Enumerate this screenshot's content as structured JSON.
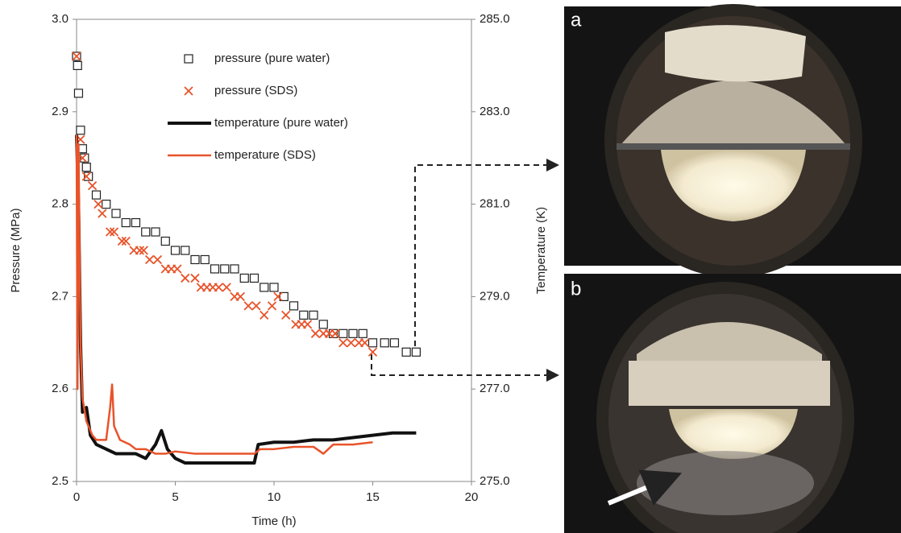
{
  "chart_data": {
    "type": "scatter-line",
    "xlabel": "Time (h)",
    "ylabel": "Pressure (MPa)",
    "y2label": "Temperature (K)",
    "xlim": [
      0,
      20
    ],
    "xticks": [
      0,
      5,
      10,
      15,
      20
    ],
    "ylim": [
      2.5,
      3.0
    ],
    "yticks": [
      2.5,
      2.6,
      2.7,
      2.8,
      2.9,
      {
        "value": 3,
        "label": "3.0"
      }
    ],
    "y2lim": [
      275,
      285
    ],
    "y2ticks": [
      {
        "value": 275,
        "label": "275.0"
      },
      {
        "value": 277,
        "label": "277.0"
      },
      {
        "value": 279,
        "label": "279.0"
      },
      {
        "value": 281,
        "label": "281.0"
      },
      {
        "value": 283,
        "label": "283.0"
      },
      {
        "value": 285,
        "label": "285.0"
      }
    ],
    "series": [
      {
        "name": "pressure (pure water)",
        "kind": "marker",
        "marker": "square",
        "color": "#222222",
        "x": [
          0,
          0.05,
          0.1,
          0.2,
          0.3,
          0.4,
          0.5,
          0.6,
          1.0,
          1.5,
          2.0,
          2.5,
          3.0,
          3.5,
          4.0,
          4.5,
          5.0,
          5.5,
          6.0,
          6.5,
          7.0,
          7.5,
          8.0,
          8.5,
          9.0,
          9.5,
          10.0,
          10.5,
          11.0,
          11.5,
          12.0,
          12.5,
          13.0,
          13.5,
          14.0,
          14.5,
          15.0,
          15.6,
          16.1,
          16.7,
          17.2
        ],
        "values": [
          2.96,
          2.95,
          2.92,
          2.88,
          2.86,
          2.85,
          2.84,
          2.83,
          2.81,
          2.8,
          2.79,
          2.78,
          2.78,
          2.77,
          2.77,
          2.76,
          2.75,
          2.75,
          2.74,
          2.74,
          2.73,
          2.73,
          2.73,
          2.72,
          2.72,
          2.71,
          2.71,
          2.7,
          2.69,
          2.68,
          2.68,
          2.67,
          2.66,
          2.66,
          2.66,
          2.66,
          2.65,
          2.65,
          2.65,
          2.64,
          2.64
        ]
      },
      {
        "name": "pressure (SDS)",
        "kind": "marker",
        "marker": "x",
        "color": "#e8532a",
        "x": [
          0,
          0.2,
          0.3,
          0.5,
          0.8,
          1.1,
          1.3,
          1.7,
          1.9,
          2.3,
          2.5,
          2.9,
          3.2,
          3.4,
          3.7,
          4.1,
          4.5,
          4.8,
          5.1,
          5.5,
          6.0,
          6.3,
          6.6,
          6.9,
          7.2,
          7.6,
          8.0,
          8.3,
          8.7,
          9.1,
          9.5,
          9.9,
          10.2,
          10.6,
          11.1,
          11.4,
          11.7,
          12.1,
          12.5,
          12.8,
          13.1,
          13.5,
          13.9,
          14.3,
          14.6,
          15.0
        ],
        "values": [
          2.96,
          2.87,
          2.85,
          2.83,
          2.82,
          2.8,
          2.79,
          2.77,
          2.77,
          2.76,
          2.76,
          2.75,
          2.75,
          2.75,
          2.74,
          2.74,
          2.73,
          2.73,
          2.73,
          2.72,
          2.72,
          2.71,
          2.71,
          2.71,
          2.71,
          2.71,
          2.7,
          2.7,
          2.69,
          2.69,
          2.68,
          2.69,
          2.7,
          2.68,
          2.67,
          2.67,
          2.67,
          2.66,
          2.66,
          2.66,
          2.66,
          2.65,
          2.65,
          2.65,
          2.65,
          2.64
        ]
      },
      {
        "name": "temperature (pure water)",
        "kind": "line",
        "axis": "y2",
        "color": "#111111",
        "line_width": 4,
        "x": [
          0,
          0.1,
          0.2,
          0.3,
          0.5,
          0.7,
          1,
          1.5,
          2,
          2.5,
          3,
          3.5,
          4,
          4.3,
          4.6,
          5,
          5.5,
          6,
          7,
          8,
          9,
          9.2,
          10,
          11,
          12,
          13,
          14,
          15,
          16,
          17,
          17.2
        ],
        "values": [
          282.5,
          281.0,
          278,
          276.5,
          276.6,
          276.0,
          275.8,
          275.7,
          275.6,
          275.6,
          275.6,
          275.5,
          275.8,
          276.1,
          275.7,
          275.5,
          275.4,
          275.4,
          275.4,
          275.4,
          275.4,
          275.8,
          275.85,
          275.85,
          275.9,
          275.9,
          275.95,
          276.0,
          276.05,
          276.05,
          276.05
        ]
      },
      {
        "name": "temperature (SDS)",
        "kind": "line",
        "axis": "y2",
        "color": "#e8532a",
        "line_width": 2.5,
        "x": [
          0,
          0.05,
          0.1,
          0.2,
          0.3,
          0.5,
          0.8,
          1,
          1.5,
          1.7,
          1.8,
          1.9,
          2.2,
          2.7,
          3,
          3.5,
          4,
          4.5,
          5,
          6,
          7,
          8,
          9,
          9.3,
          10,
          11,
          12,
          12.5,
          13,
          14,
          15
        ],
        "values": [
          282.5,
          277,
          282.3,
          278,
          276.8,
          276.3,
          276.0,
          275.9,
          275.9,
          276.6,
          277.1,
          276.2,
          275.9,
          275.8,
          275.7,
          275.7,
          275.6,
          275.6,
          275.65,
          275.6,
          275.6,
          275.6,
          275.6,
          275.7,
          275.7,
          275.75,
          275.75,
          275.6,
          275.8,
          275.8,
          275.85
        ]
      }
    ]
  },
  "panels": [
    {
      "label": "a"
    },
    {
      "label": "b"
    }
  ]
}
